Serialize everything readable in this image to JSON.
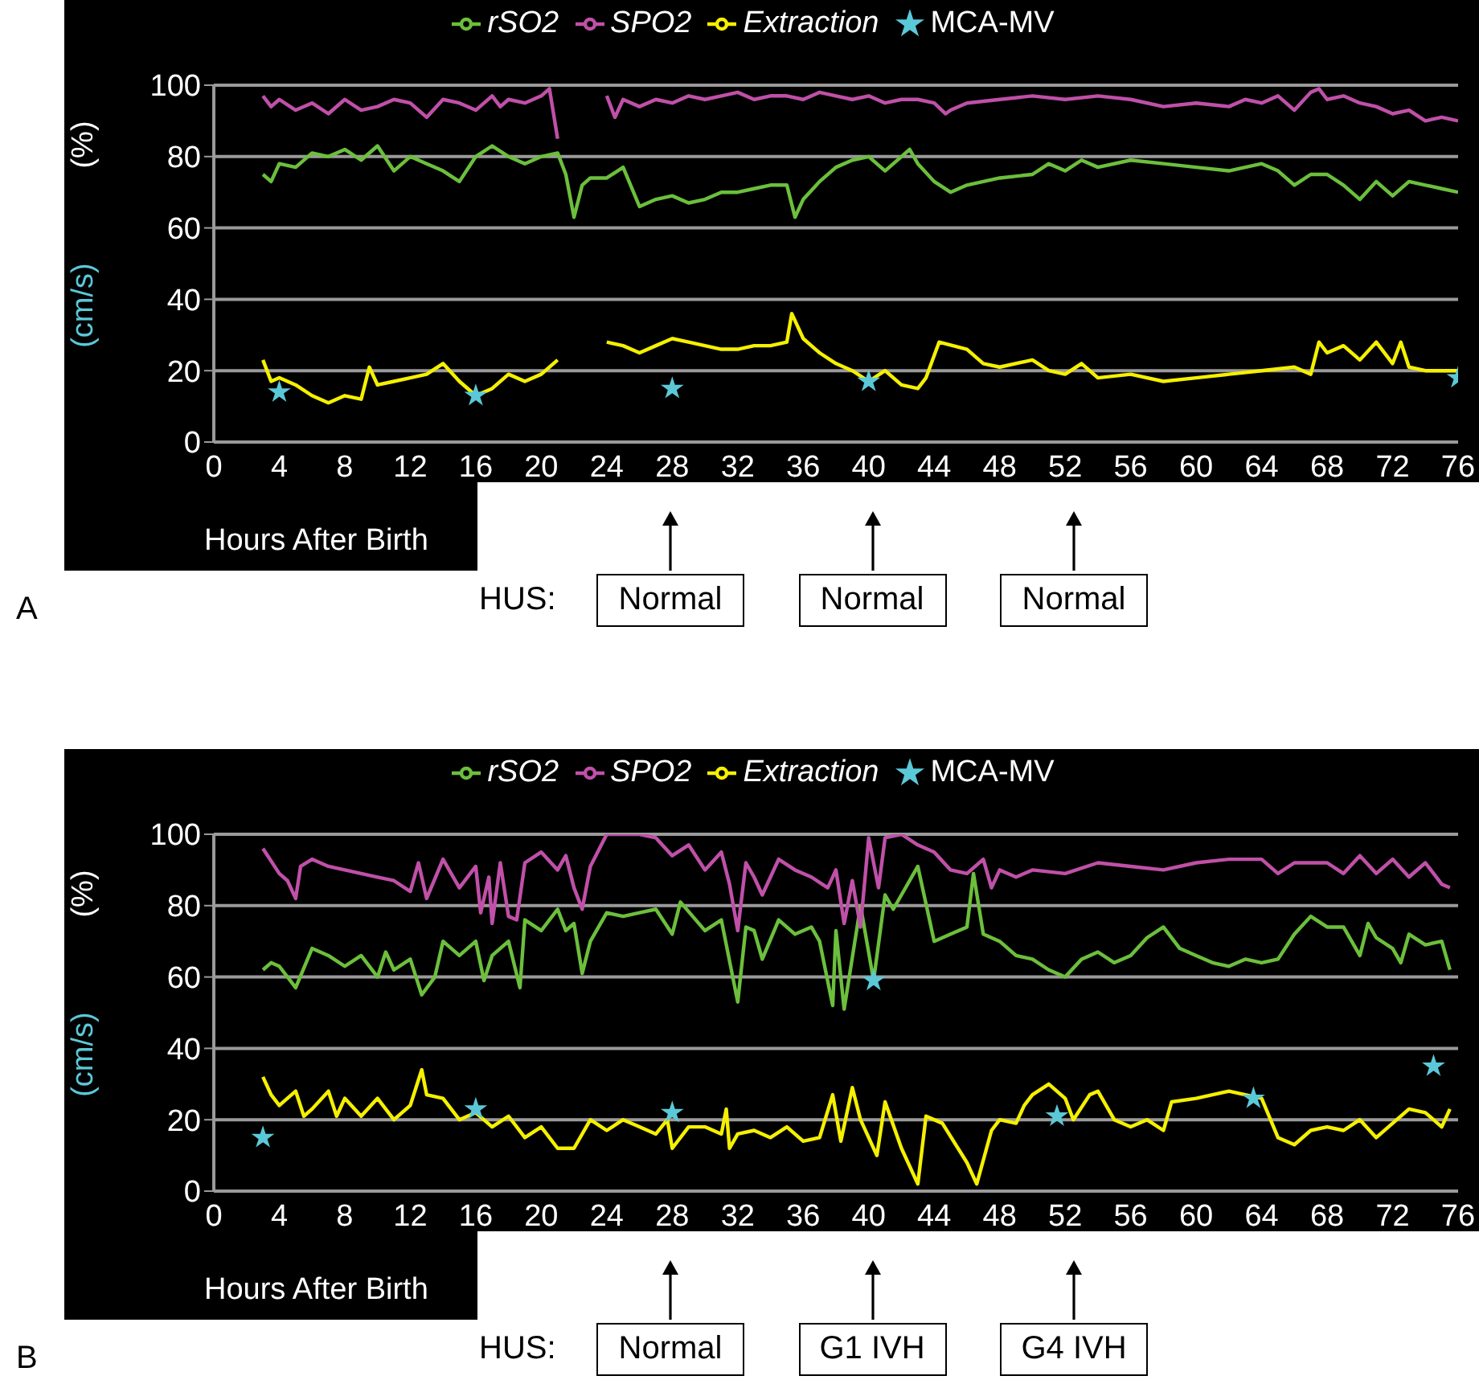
{
  "chart_data": [
    {
      "type": "line",
      "title": "A",
      "xlabel": "Hours After Birth",
      "ylabel": "(%)",
      "xlim": [
        0,
        76
      ],
      "xticks": [
        0,
        4,
        8,
        12,
        16,
        20,
        24,
        28,
        32,
        36,
        40,
        44,
        48,
        52,
        56,
        60,
        64,
        68,
        72,
        76
      ],
      "ylim": [
        0,
        100
      ],
      "yticks": [
        0,
        20,
        40,
        60,
        80,
        100
      ],
      "grid": "y",
      "legend": "top",
      "annotations": [
        "(cm/s)",
        "HUS:",
        "Normal",
        "Normal",
        "Normal"
      ],
      "series": [
        {
          "name": "rSO2",
          "type": "line",
          "color": "#6cbf3c",
          "x": [
            3,
            3.5,
            4,
            5,
            6,
            7,
            8,
            9,
            10,
            11,
            12,
            13,
            14,
            15,
            16,
            17,
            18,
            19,
            20,
            21,
            21.5,
            22,
            22.5,
            23,
            24,
            25,
            26,
            27,
            28,
            29,
            30,
            31,
            32,
            33,
            34,
            35,
            35.5,
            36,
            37,
            38,
            39,
            40,
            41,
            42,
            42.5,
            43,
            44,
            45,
            46,
            48,
            50,
            51,
            52,
            53,
            54,
            56,
            58,
            60,
            62,
            64,
            65,
            66,
            67,
            68,
            69,
            70,
            71,
            72,
            73,
            74,
            75,
            76
          ],
          "values": [
            75,
            73,
            78,
            77,
            81,
            80,
            82,
            79,
            83,
            76,
            80,
            78,
            76,
            73,
            80,
            83,
            80,
            78,
            80,
            81,
            75,
            63,
            72,
            74,
            74,
            77,
            66,
            68,
            69,
            67,
            68,
            70,
            70,
            71,
            72,
            72,
            63,
            68,
            73,
            77,
            79,
            80,
            76,
            80,
            82,
            78,
            73,
            70,
            72,
            74,
            75,
            78,
            76,
            79,
            77,
            79,
            78,
            77,
            76,
            78,
            76,
            72,
            75,
            75,
            72,
            68,
            73,
            69,
            73,
            72,
            71,
            70
          ]
        },
        {
          "name": "SPO2",
          "type": "line",
          "color": "#c050a8",
          "x": [
            3,
            3.5,
            4,
            5,
            6,
            7,
            8,
            9,
            10,
            11,
            12,
            13,
            14,
            15,
            16,
            17,
            17.5,
            18,
            19,
            20,
            20.5,
            21,
            22,
            24,
            24.5,
            25,
            26,
            27,
            28,
            29,
            30,
            31,
            32,
            33,
            34,
            35,
            36,
            37,
            38,
            39,
            40,
            41,
            42,
            43,
            44,
            44.7,
            45,
            46,
            48,
            50,
            52,
            54,
            56,
            58,
            60,
            62,
            63,
            64,
            65,
            66,
            67,
            67.5,
            68,
            69,
            70,
            71,
            72,
            73,
            74,
            75,
            76
          ],
          "values": [
            97,
            94,
            96,
            93,
            95,
            92,
            96,
            93,
            94,
            96,
            95,
            91,
            96,
            95,
            93,
            97,
            94,
            96,
            95,
            97,
            99,
            85,
            null,
            97,
            91,
            96,
            94,
            96,
            95,
            97,
            96,
            97,
            98,
            96,
            97,
            97,
            96,
            98,
            97,
            96,
            97,
            95,
            96,
            96,
            95,
            92,
            93,
            95,
            96,
            97,
            96,
            97,
            96,
            94,
            95,
            94,
            96,
            95,
            97,
            93,
            98,
            99,
            96,
            97,
            95,
            94,
            92,
            93,
            90,
            91,
            90
          ]
        },
        {
          "name": "Extraction",
          "type": "line",
          "color": "#f5f000",
          "x": [
            3,
            3.5,
            4,
            5,
            6,
            7,
            8,
            9,
            9.5,
            10,
            11,
            12,
            13,
            14,
            15,
            16,
            17,
            18,
            19,
            20,
            21,
            22,
            24,
            25,
            26,
            27,
            28,
            29,
            30,
            31,
            32,
            33,
            34,
            35,
            35.3,
            36,
            37,
            38,
            39,
            40,
            41,
            42,
            43,
            43.5,
            44.3,
            46,
            47,
            48,
            50,
            51,
            52,
            53,
            54,
            56,
            58,
            60,
            62,
            64,
            66,
            67,
            67.5,
            68,
            69,
            70,
            71,
            72,
            72.5,
            73,
            74,
            76
          ],
          "values": [
            23,
            17,
            18,
            16,
            13,
            11,
            13,
            12,
            21,
            16,
            17,
            18,
            19,
            22,
            17,
            13,
            15,
            19,
            17,
            19,
            23,
            null,
            28,
            27,
            25,
            27,
            29,
            28,
            27,
            26,
            26,
            27,
            27,
            28,
            36,
            29,
            25,
            22,
            20,
            17,
            20,
            16,
            15,
            18,
            28,
            26,
            22,
            21,
            23,
            20,
            19,
            22,
            18,
            19,
            17,
            18,
            19,
            20,
            21,
            19,
            28,
            25,
            27,
            23,
            28,
            22,
            28,
            21,
            20,
            20
          ]
        },
        {
          "name": "MCA-MV",
          "type": "scatter",
          "marker": "star",
          "color": "#5bc8d8",
          "x": [
            4,
            16,
            28,
            40,
            76
          ],
          "values": [
            14,
            13,
            15,
            17,
            18
          ]
        }
      ]
    },
    {
      "type": "line",
      "title": "B",
      "xlabel": "Hours After Birth",
      "ylabel": "(%)",
      "xlim": [
        0,
        76
      ],
      "xticks": [
        0,
        4,
        8,
        12,
        16,
        20,
        24,
        28,
        32,
        36,
        40,
        44,
        48,
        52,
        56,
        60,
        64,
        68,
        72,
        76
      ],
      "ylim": [
        0,
        100
      ],
      "yticks": [
        0,
        20,
        40,
        60,
        80,
        100
      ],
      "grid": "y",
      "legend": "top",
      "annotations": [
        "(cm/s)",
        "HUS:",
        "Normal",
        "G1 IVH",
        "G4 IVH"
      ],
      "series": [
        {
          "name": "rSO2",
          "type": "line",
          "color": "#6cbf3c",
          "x": [
            3,
            3.5,
            4,
            5,
            6,
            7,
            8,
            9,
            10,
            10.5,
            11,
            12,
            12.7,
            13.5,
            14,
            15,
            16,
            16.5,
            17,
            18,
            18.7,
            19,
            20,
            21,
            21.5,
            22,
            22.5,
            23,
            24,
            25,
            26,
            27,
            28,
            28.5,
            30,
            31,
            32,
            32.5,
            33,
            33.5,
            34.5,
            35.5,
            36.5,
            37,
            37.8,
            38,
            38.5,
            39.5,
            40.3,
            41,
            41.5,
            42,
            43,
            44,
            45,
            46,
            46.4,
            47,
            48,
            49,
            50,
            51,
            52,
            53,
            54,
            55,
            56,
            57,
            58,
            59,
            60,
            61,
            62,
            63,
            64,
            65,
            66,
            67,
            68,
            69,
            70,
            70.5,
            71,
            72,
            72.5,
            73,
            74,
            75,
            75.5
          ],
          "values": [
            62,
            64,
            63,
            57,
            68,
            66,
            63,
            66,
            60,
            67,
            62,
            65,
            55,
            60,
            70,
            66,
            70,
            59,
            66,
            70,
            57,
            76,
            73,
            79,
            73,
            75,
            61,
            70,
            78,
            77,
            78,
            79,
            72,
            81,
            73,
            76,
            53,
            74,
            73,
            65,
            76,
            72,
            74,
            70,
            52,
            73,
            51,
            80,
            59,
            83,
            79,
            83,
            91,
            70,
            72,
            74,
            89,
            72,
            70,
            66,
            65,
            62,
            60,
            65,
            67,
            64,
            66,
            71,
            74,
            68,
            66,
            64,
            63,
            65,
            64,
            65,
            72,
            77,
            74,
            74,
            66,
            75,
            71,
            68,
            64,
            72,
            69,
            70,
            62
          ]
        },
        {
          "name": "SPO2",
          "type": "line",
          "color": "#c050a8",
          "x": [
            3,
            4,
            4.5,
            5,
            5.3,
            6,
            7,
            8,
            9,
            10,
            11,
            12,
            12.5,
            13,
            14,
            15,
            16,
            16.3,
            16.8,
            17,
            17.5,
            18,
            18.5,
            19,
            20,
            21,
            21.5,
            22,
            22.5,
            23,
            24,
            26,
            27,
            28,
            29,
            30,
            31,
            31.5,
            32,
            32.5,
            33,
            33.5,
            34.5,
            35.5,
            36.5,
            37.5,
            38,
            38.5,
            39,
            39.5,
            40,
            40.6,
            41,
            42,
            43,
            44,
            45,
            46,
            47,
            47.5,
            48,
            49,
            50,
            52,
            54,
            56,
            58,
            60,
            62,
            64,
            65,
            66,
            68,
            69,
            70,
            71,
            72,
            73,
            74,
            75,
            75.5
          ],
          "values": [
            96,
            89,
            87,
            82,
            91,
            93,
            91,
            90,
            89,
            88,
            87,
            84,
            92,
            82,
            93,
            85,
            91,
            78,
            88,
            75,
            92,
            77,
            76,
            92,
            95,
            90,
            94,
            85,
            79,
            91,
            100,
            100,
            99,
            94,
            97,
            90,
            95,
            86,
            73,
            92,
            88,
            83,
            93,
            90,
            88,
            85,
            90,
            75,
            87,
            74,
            99,
            85,
            99,
            100,
            97,
            95,
            90,
            89,
            93,
            85,
            90,
            88,
            90,
            89,
            92,
            91,
            90,
            92,
            93,
            93,
            89,
            92,
            92,
            89,
            94,
            89,
            93,
            88,
            92,
            86,
            85
          ]
        },
        {
          "name": "Extraction",
          "type": "line",
          "color": "#f5f000",
          "x": [
            3,
            3.5,
            4,
            5,
            5.5,
            6,
            7,
            7.5,
            8,
            9,
            10,
            11,
            12,
            12.7,
            13,
            14,
            15,
            16,
            17,
            18,
            19,
            20,
            21,
            22,
            23,
            24,
            25,
            26,
            27,
            27.7,
            28,
            29,
            30,
            31,
            31.3,
            31.5,
            32,
            33,
            34,
            35,
            36,
            37,
            37.8,
            38.3,
            39,
            39.5,
            40.5,
            41,
            42,
            43,
            43.5,
            44.5,
            46,
            46.6,
            47.5,
            48,
            49,
            49.5,
            50,
            51,
            52,
            52.5,
            53.5,
            54,
            55,
            56,
            57,
            58,
            58.5,
            60,
            62,
            63,
            64,
            65,
            66,
            67,
            68,
            69,
            70,
            71,
            72,
            73,
            74,
            75,
            75.5
          ],
          "values": [
            32,
            27,
            24,
            28,
            21,
            23,
            28,
            21,
            26,
            21,
            26,
            20,
            24,
            34,
            27,
            26,
            20,
            22,
            18,
            21,
            15,
            18,
            12,
            12,
            20,
            17,
            20,
            18,
            16,
            20,
            12,
            18,
            18,
            16,
            23,
            12,
            16,
            17,
            15,
            18,
            14,
            15,
            27,
            14,
            29,
            20,
            10,
            25,
            12,
            2,
            21,
            19,
            8,
            2,
            17,
            20,
            19,
            24,
            27,
            30,
            26,
            20,
            27,
            28,
            20,
            18,
            20,
            17,
            25,
            26,
            28,
            27,
            26,
            15,
            13,
            17,
            18,
            17,
            20,
            15,
            19,
            23,
            22,
            18,
            23
          ]
        },
        {
          "name": "MCA-MV",
          "type": "scatter",
          "marker": "star",
          "color": "#5bc8d8",
          "x": [
            3,
            16,
            28,
            40.3,
            51.5,
            63.5,
            74.5
          ],
          "values": [
            15,
            23,
            22,
            59,
            21,
            26,
            35
          ]
        }
      ]
    }
  ]
}
